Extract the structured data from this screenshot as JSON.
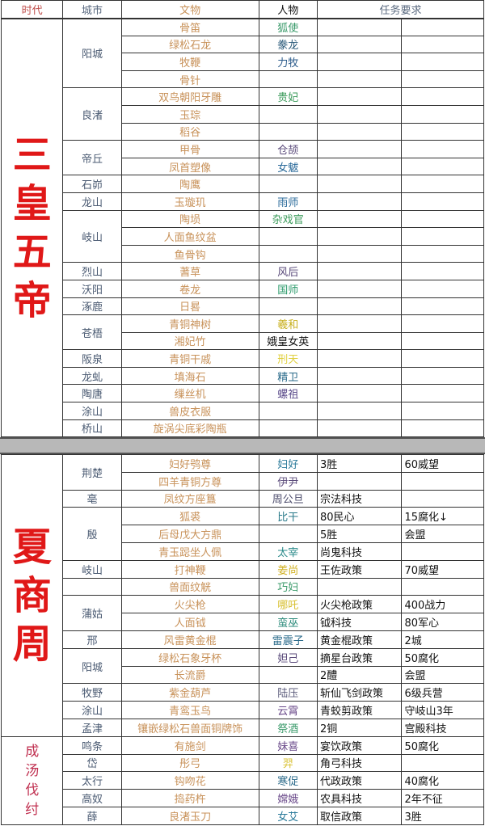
{
  "header": {
    "columns": [
      {
        "label": "时代",
        "color": "#c0504d"
      },
      {
        "label": "城市",
        "color": "#5a6a80"
      },
      {
        "label": "文物",
        "color": "#c8925a"
      },
      {
        "label": "人物",
        "color": "#111111"
      },
      {
        "label": "任务要求",
        "color": "#5a6a80"
      }
    ]
  },
  "sections": [
    {
      "era": "三皇五帝",
      "cities": [
        {
          "city": "阳城",
          "rows": [
            {
              "artifact": "骨笛",
              "person": "狐使",
              "person_color": "#3a9a6a"
            },
            {
              "artifact": "绿松石龙",
              "person": "豢龙",
              "person_color": "#2a5a7a"
            },
            {
              "artifact": "牧鞭",
              "person": "力牧",
              "person_color": "#2a5a8a"
            },
            {
              "artifact": "骨针",
              "person": ""
            }
          ]
        },
        {
          "city": "良渚",
          "rows": [
            {
              "artifact": "双鸟朝阳牙雕",
              "person": "贵妃",
              "person_color": "#3a9a5a"
            },
            {
              "artifact": "玉琮",
              "person": ""
            },
            {
              "artifact": "稻谷",
              "person": ""
            }
          ]
        },
        {
          "city": "帝丘",
          "rows": [
            {
              "artifact": "甲骨",
              "person": "仓颉",
              "person_color": "#5a4a7a"
            },
            {
              "artifact": "凤首塑像",
              "person": "女魃",
              "person_color": "#2a6a9a"
            }
          ]
        },
        {
          "city": "石峁",
          "rows": [
            {
              "artifact": "陶鹰",
              "person": ""
            }
          ]
        },
        {
          "city": "龙山",
          "rows": [
            {
              "artifact": "玉璇玑",
              "person": "雨师",
              "person_color": "#2a6a9a"
            }
          ]
        },
        {
          "city": "岐山",
          "rows": [
            {
              "artifact": "陶埙",
              "person": "杂戏官",
              "person_color": "#3a9a5a"
            },
            {
              "artifact": "人面鱼纹盆",
              "person": ""
            },
            {
              "artifact": "鱼骨钩",
              "person": ""
            }
          ]
        },
        {
          "city": "烈山",
          "rows": [
            {
              "artifact": "蓍草",
              "person": "风后",
              "person_color": "#5a4a7a"
            }
          ]
        },
        {
          "city": "沃阳",
          "rows": [
            {
              "artifact": "卷龙",
              "person": "国师",
              "person_color": "#2a9a6a"
            }
          ]
        },
        {
          "city": "涿鹿",
          "rows": [
            {
              "artifact": "日晷",
              "person": ""
            }
          ]
        },
        {
          "city": "苍梧",
          "rows": [
            {
              "artifact": "青铜神树",
              "person": "羲和",
              "person_color": "#c8b020"
            },
            {
              "artifact": "湘妃竹",
              "person": "娥皇女英",
              "person_color": "#111111"
            }
          ]
        },
        {
          "city": "阪泉",
          "rows": [
            {
              "artifact": "青铜干戚",
              "person": "刑天",
              "person_color": "#e0d040"
            }
          ]
        },
        {
          "city": "龙虬",
          "rows": [
            {
              "artifact": "填海石",
              "person": "精卫",
              "person_color": "#2a6a8a"
            }
          ]
        },
        {
          "city": "陶唐",
          "rows": [
            {
              "artifact": "缫丝机",
              "person": "螺祖",
              "person_color": "#5a4a8a"
            }
          ]
        },
        {
          "city": "涂山",
          "rows": [
            {
              "artifact": "兽皮衣服",
              "person": ""
            }
          ]
        },
        {
          "city": "桥山",
          "rows": [
            {
              "artifact": "旋涡尖底彩陶瓶",
              "person": ""
            }
          ]
        }
      ]
    },
    {
      "era": "夏商周",
      "cities": [
        {
          "city": "荆楚",
          "rows": [
            {
              "artifact": "妇好鸮尊",
              "person": "妇好",
              "person_color": "#2a7a9a",
              "task1": "3胜",
              "task2": "60威望"
            },
            {
              "artifact": "四羊青铜方尊",
              "person": "伊尹",
              "person_color": "#5a4a7a"
            }
          ]
        },
        {
          "city": "亳",
          "rows": [
            {
              "artifact": "凤纹方座簋",
              "person": "周公旦",
              "person_color": "#4a4a6a",
              "task1": "宗法科技"
            }
          ]
        },
        {
          "city": "殷",
          "rows": [
            {
              "artifact": "狐裘",
              "person": "比干",
              "person_color": "#2a7a8a",
              "task1": "80民心",
              "task2": "15腐化↓"
            },
            {
              "artifact": "后母戊大方鼎",
              "person": "",
              "task1": "5胜",
              "task2": "会盟"
            },
            {
              "artifact": "青玉跽坐人佩",
              "person": "太宰",
              "person_color": "#2a8a8a",
              "task1": "尚鬼科技"
            }
          ]
        },
        {
          "city": "岐山",
          "rows": [
            {
              "artifact": "打神鞭",
              "person": "姜尚",
              "person_color": "#d0b020",
              "task1": "王佐政策",
              "task2": "70威望"
            }
          ]
        },
        {
          "city": "",
          "rows": [
            {
              "artifact": "兽面纹觥",
              "person": "巧妇",
              "person_color": "#3a9a6a"
            }
          ]
        },
        {
          "city": "蒲姑",
          "rows": [
            {
              "artifact": "火尖枪",
              "person": "哪吒",
              "person_color": "#d8c030",
              "task1": "火尖枪政策",
              "task2": "400战力"
            },
            {
              "artifact": "人面钺",
              "person": "蛮巫",
              "person_color": "#2a8a7a",
              "task1": "钺科技",
              "task2": "80军心"
            }
          ]
        },
        {
          "city": "邢",
          "rows": [
            {
              "artifact": "风雷黄金棍",
              "person": "雷震子",
              "person_color": "#2a6a8a",
              "task1": "黄金棍政策",
              "task2": "2城"
            }
          ]
        },
        {
          "city": "阳城",
          "rows": [
            {
              "artifact": "绿松石象牙杯",
              "person": "妲己",
              "person_color": "#5a4a7a",
              "task1": "摘星台政策",
              "task2": "50腐化"
            },
            {
              "artifact": "长流爵",
              "person": "",
              "task1": "2醴",
              "task2": "会盟"
            }
          ]
        },
        {
          "city": "牧野",
          "rows": [
            {
              "artifact": "紫金葫芦",
              "person": "陆压",
              "person_color": "#5a5a7a",
              "task1": "斩仙飞剑政策",
              "task2": "6级兵营"
            }
          ]
        },
        {
          "city": "涂山",
          "rows": [
            {
              "artifact": "青鸾玉鸟",
              "person": "云霄",
              "person_color": "#6a4a8a",
              "task1": "青蛟剪政策",
              "task2": "守岐山3年"
            }
          ]
        },
        {
          "city": "孟津",
          "rows": [
            {
              "artifact": "镶嵌绿松石兽面铜牌饰",
              "person": "祭酒",
              "person_color": "#3a9a6a",
              "task1": "2铜",
              "task2": "宫殿科技"
            }
          ]
        }
      ]
    },
    {
      "era": "成汤伐纣",
      "small": true,
      "cities": [
        {
          "city": "鸣条",
          "rows": [
            {
              "artifact": "有施剑",
              "person": "妹喜",
              "person_color": "#6a4a8a",
              "task1": "宴饮政策",
              "task2": "50腐化"
            }
          ]
        },
        {
          "city": "岱",
          "rows": [
            {
              "artifact": "彤弓",
              "person": "羿",
              "person_color": "#d8c030",
              "task1": "角弓科技"
            }
          ]
        },
        {
          "city": "太行",
          "rows": [
            {
              "artifact": "钩吻花",
              "person": "寒促",
              "person_color": "#2a6a8a",
              "task1": "代政政策",
              "task2": "40腐化"
            }
          ]
        },
        {
          "city": "高奴",
          "rows": [
            {
              "artifact": "捣药杵",
              "person": "嫦娥",
              "person_color": "#6a4a8a",
              "task1": "农具科技",
              "task2": "2年不征"
            }
          ]
        },
        {
          "city": "薛",
          "rows": [
            {
              "artifact": "良渚玉刀",
              "person": "女艾",
              "person_color": "#2a7a9a",
              "task1": "取信政策",
              "task2": "3胜"
            }
          ]
        }
      ]
    }
  ]
}
